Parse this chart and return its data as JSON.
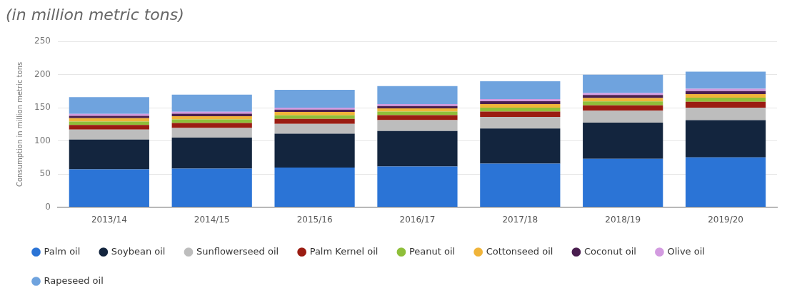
{
  "chart_data": {
    "type": "bar",
    "title": "(in million metric tons)",
    "ylabel": "Consumption in million metric tons",
    "stacked": true,
    "categories": [
      "2013/14",
      "2014/15",
      "2015/16",
      "2016/17",
      "2017/18",
      "2018/19",
      "2019/20"
    ],
    "series": [
      {
        "name": "Palm oil",
        "color": "#2b74d6",
        "values": [
          57.1,
          58.1,
          59.7,
          61.3,
          65.6,
          72.9,
          75.1
        ]
      },
      {
        "name": "Soybean oil",
        "color": "#13253e",
        "values": [
          44.9,
          47,
          51.1,
          53.6,
          53,
          54.7,
          56.2
        ]
      },
      {
        "name": "Sunflowerseed oil",
        "color": "#bdbdbd",
        "values": [
          15.1,
          14.5,
          14.9,
          16.4,
          17.5,
          17.9,
          19
        ]
      },
      {
        "name": "Palm Kernel oil",
        "color": "#9b1c12",
        "values": [
          7,
          7.4,
          7.5,
          7.5,
          8.2,
          8.3,
          8.7
        ]
      },
      {
        "name": "Peanut oil",
        "color": "#8fbf3a",
        "values": [
          5.2,
          5.3,
          5.4,
          5.4,
          6,
          5.8,
          6.2
        ]
      },
      {
        "name": "Cottonseed oil",
        "color": "#f0b43a",
        "values": [
          5,
          5,
          5,
          4.9,
          5.2,
          5.2,
          5.3
        ]
      },
      {
        "name": "Coconut oil",
        "color": "#4a1e4f",
        "values": [
          3.5,
          3.6,
          3.6,
          3.5,
          4.3,
          4.4,
          4.8
        ]
      },
      {
        "name": "Olive oil",
        "color": "#d39be0",
        "values": [
          3,
          3,
          3.1,
          3,
          3.3,
          3.1,
          3.4
        ]
      },
      {
        "name": "Rapeseed oil",
        "color": "#6fa3de",
        "values": [
          25.2,
          25.9,
          26.8,
          27.2,
          27,
          27.5,
          25.8
        ]
      }
    ],
    "ylim": [
      0,
      250
    ],
    "yticks": [
      0,
      50,
      100,
      150,
      200,
      250
    ],
    "grid": "y",
    "legend": "bottom"
  }
}
